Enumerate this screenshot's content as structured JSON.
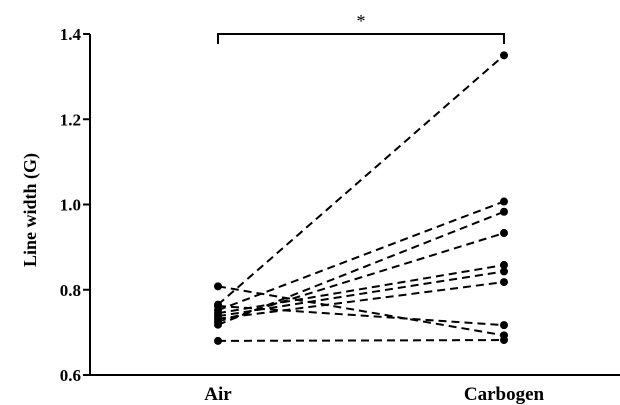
{
  "chart_data": {
    "type": "line",
    "ylabel": "Line width (G)",
    "xlabel": "",
    "categories": [
      "Air",
      "Carbogen"
    ],
    "ylim": [
      0.6,
      1.4
    ],
    "yticks": [
      "0.6",
      "0.8",
      "1.0",
      "1.2",
      "1.4"
    ],
    "yticks_values": [
      0.6,
      0.8,
      1.0,
      1.2,
      1.4
    ],
    "pairs": [
      {
        "air": 0.808,
        "carbogen": 0.693
      },
      {
        "air": 0.765,
        "carbogen": 1.35
      },
      {
        "air": 0.762,
        "carbogen": 0.717
      },
      {
        "air": 0.752,
        "carbogen": 1.007
      },
      {
        "air": 0.745,
        "carbogen": 0.858
      },
      {
        "air": 0.738,
        "carbogen": 0.843
      },
      {
        "air": 0.732,
        "carbogen": 0.818
      },
      {
        "air": 0.725,
        "carbogen": 0.933
      },
      {
        "air": 0.718,
        "carbogen": 0.983
      },
      {
        "air": 0.68,
        "carbogen": 0.682
      }
    ],
    "significance": {
      "label": "*"
    },
    "line_style": "dashed",
    "marker": "filled-circle",
    "color": "#000000",
    "grid": false
  }
}
